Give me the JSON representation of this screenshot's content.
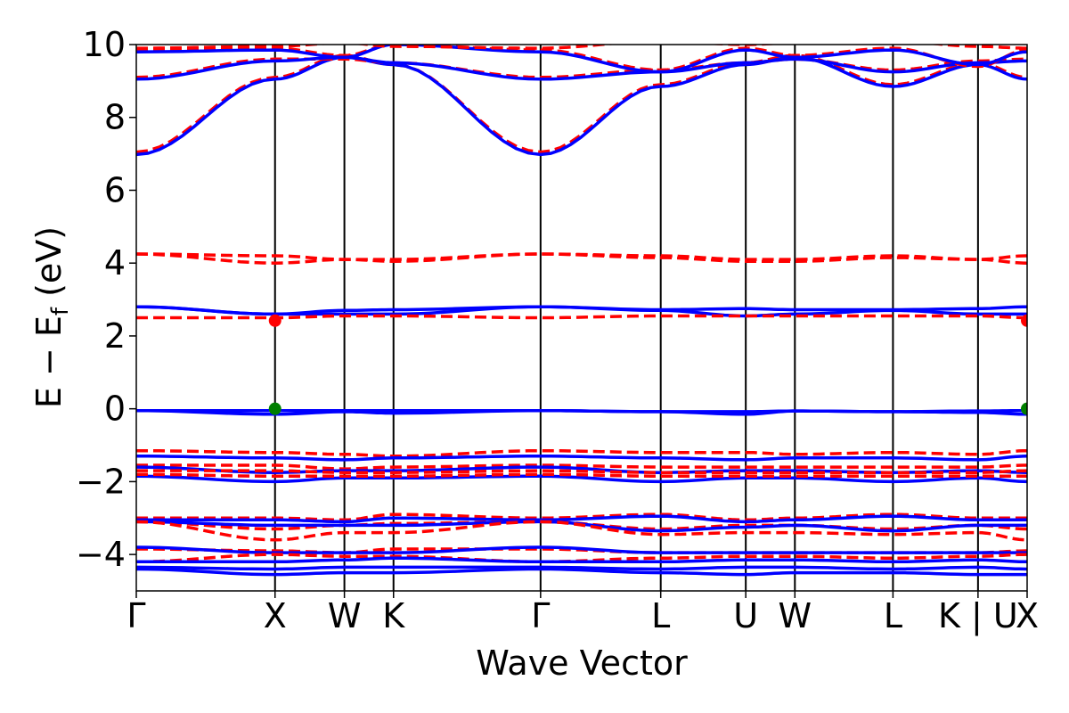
{
  "chart_data": {
    "type": "line",
    "xlabel": "Wave Vector",
    "ylabel": "E − E",
    "ylabel_sub": "f",
    "ylabel_unit": " (eV)",
    "ylim": [
      -5,
      10
    ],
    "yticks": [
      10,
      8,
      6,
      4,
      2,
      0,
      -2,
      -4
    ],
    "ytick_labels": [
      "10",
      "8",
      "6",
      "4",
      "2",
      "0",
      "−2",
      "−4"
    ],
    "kpath": [
      {
        "label": "Γ",
        "x": 0
      },
      {
        "label": "X",
        "x": 1.0
      },
      {
        "label": "W",
        "x": 1.5
      },
      {
        "label": "K",
        "x": 1.854
      },
      {
        "label": "Γ",
        "x": 2.914
      },
      {
        "label": "L",
        "x": 3.78
      },
      {
        "label": "U",
        "x": 4.393
      },
      {
        "label": "W",
        "x": 4.747
      },
      {
        "label": "L",
        "x": 5.454
      },
      {
        "label": "K | U",
        "x": 6.067
      },
      {
        "label": "X",
        "x": 6.421
      }
    ],
    "xlim": [
      0,
      6.421
    ],
    "grid": false,
    "legend": "none",
    "colors": {
      "solid": "#0000ff",
      "dashed": "#ff0000",
      "marker_red": "#ff0000",
      "marker_green": "#007f00"
    },
    "series": [
      {
        "style": "solid",
        "y": [
          -0.05,
          -0.05,
          -0.05,
          -0.05,
          -0.05,
          -0.08,
          -0.08,
          -0.06,
          -0.08,
          -0.06,
          -0.05
        ]
      },
      {
        "style": "solid",
        "y": [
          -0.05,
          -0.15,
          -0.08,
          -0.12,
          -0.05,
          -0.08,
          -0.15,
          -0.06,
          -0.08,
          -0.1,
          -0.15
        ]
      },
      {
        "style": "solid",
        "y": [
          2.8,
          2.6,
          2.7,
          2.72,
          2.8,
          2.72,
          2.75,
          2.72,
          2.72,
          2.75,
          2.8
        ]
      },
      {
        "style": "solid",
        "y": [
          2.8,
          2.6,
          2.6,
          2.6,
          2.8,
          2.7,
          2.55,
          2.6,
          2.7,
          2.6,
          2.6
        ]
      },
      {
        "style": "dashed",
        "y": [
          2.5,
          2.5,
          2.55,
          2.55,
          2.5,
          2.55,
          2.55,
          2.55,
          2.55,
          2.55,
          2.5
        ]
      },
      {
        "style": "dashed",
        "y": [
          4.25,
          4.2,
          4.1,
          4.1,
          4.25,
          4.2,
          4.1,
          4.1,
          4.2,
          4.1,
          4.2
        ]
      },
      {
        "style": "dashed",
        "y": [
          4.25,
          4.0,
          4.1,
          4.05,
          4.25,
          4.15,
          4.05,
          4.05,
          4.15,
          4.1,
          4.0
        ]
      },
      {
        "style": "dashed",
        "y": [
          7.05,
          9.1,
          9.7,
          9.45,
          7.05,
          8.9,
          9.5,
          9.7,
          8.9,
          9.5,
          9.1
        ]
      },
      {
        "style": "solid",
        "y": [
          6.98,
          9.05,
          9.65,
          9.45,
          6.98,
          8.85,
          9.45,
          9.65,
          8.85,
          9.45,
          9.05
        ]
      },
      {
        "style": "dashed",
        "y": [
          9.1,
          9.6,
          9.6,
          9.5,
          9.1,
          9.3,
          9.5,
          9.6,
          9.3,
          9.55,
          9.6
        ]
      },
      {
        "style": "solid",
        "y": [
          9.05,
          9.55,
          9.65,
          9.5,
          9.05,
          9.25,
          9.5,
          9.6,
          9.25,
          9.5,
          9.55
        ]
      },
      {
        "style": "dashed",
        "y": [
          9.85,
          9.9,
          9.7,
          10.0,
          9.85,
          9.3,
          9.9,
          9.7,
          9.9,
          9.4,
          9.85
        ]
      },
      {
        "style": "solid",
        "y": [
          9.8,
          9.85,
          9.65,
          10.0,
          9.8,
          9.25,
          9.85,
          9.65,
          9.85,
          9.45,
          9.8
        ]
      },
      {
        "style": "dashed",
        "y": [
          9.9,
          9.95,
          10.05,
          9.95,
          9.9,
          10.1,
          10.0,
          10.05,
          10.1,
          9.95,
          9.9
        ]
      },
      {
        "style": "dashed",
        "y": [
          -1.15,
          -1.2,
          -1.25,
          -1.3,
          -1.15,
          -1.2,
          -1.2,
          -1.25,
          -1.2,
          -1.25,
          -1.15
        ]
      },
      {
        "style": "solid",
        "y": [
          -1.3,
          -1.35,
          -1.4,
          -1.35,
          -1.3,
          -1.35,
          -1.4,
          -1.35,
          -1.35,
          -1.4,
          -1.3
        ]
      },
      {
        "style": "dashed",
        "y": [
          -1.55,
          -1.55,
          -1.65,
          -1.6,
          -1.55,
          -1.6,
          -1.6,
          -1.6,
          -1.6,
          -1.6,
          -1.55
        ]
      },
      {
        "style": "solid",
        "y": [
          -1.6,
          -1.75,
          -1.7,
          -1.7,
          -1.6,
          -1.75,
          -1.7,
          -1.7,
          -1.75,
          -1.7,
          -1.75
        ]
      },
      {
        "style": "dashed",
        "y": [
          -1.7,
          -1.7,
          -1.75,
          -1.75,
          -1.7,
          -1.75,
          -1.75,
          -1.75,
          -1.75,
          -1.75,
          -1.7
        ]
      },
      {
        "style": "solid",
        "y": [
          -1.85,
          -2.0,
          -1.9,
          -1.9,
          -1.85,
          -2.0,
          -1.9,
          -1.9,
          -2.0,
          -1.9,
          -2.0
        ]
      },
      {
        "style": "dashed",
        "y": [
          -1.8,
          -1.85,
          -1.85,
          -1.85,
          -1.8,
          -1.85,
          -1.85,
          -1.85,
          -1.85,
          -1.85,
          -1.85
        ]
      },
      {
        "style": "dashed",
        "y": [
          -3.0,
          -3.0,
          -3.05,
          -2.9,
          -3.0,
          -2.9,
          -3.05,
          -3.0,
          -2.9,
          -3.0,
          -3.0
        ]
      },
      {
        "style": "solid",
        "y": [
          -3.05,
          -3.05,
          -3.1,
          -3.0,
          -3.05,
          -2.95,
          -3.1,
          -3.05,
          -2.95,
          -3.05,
          -3.05
        ]
      },
      {
        "style": "dashed",
        "y": [
          -3.1,
          -3.3,
          -3.2,
          -3.15,
          -3.1,
          -3.3,
          -3.2,
          -3.2,
          -3.3,
          -3.2,
          -3.3
        ]
      },
      {
        "style": "solid",
        "y": [
          -3.1,
          -3.2,
          -3.2,
          -3.2,
          -3.1,
          -3.35,
          -3.25,
          -3.2,
          -3.35,
          -3.2,
          -3.2
        ]
      },
      {
        "style": "dashed",
        "y": [
          -3.1,
          -3.6,
          -3.4,
          -3.4,
          -3.1,
          -3.45,
          -3.4,
          -3.4,
          -3.45,
          -3.4,
          -3.6
        ]
      },
      {
        "style": "dashed",
        "y": [
          -3.85,
          -3.9,
          -3.95,
          -3.85,
          -3.85,
          -3.95,
          -3.95,
          -3.95,
          -3.95,
          -3.95,
          -3.9
        ]
      },
      {
        "style": "solid",
        "y": [
          -3.8,
          -3.95,
          -3.95,
          -3.95,
          -3.8,
          -3.95,
          -3.95,
          -3.95,
          -3.95,
          -3.95,
          -3.95
        ]
      },
      {
        "style": "dashed",
        "y": [
          -4.2,
          -4.0,
          -4.05,
          -4.05,
          -4.2,
          -4.1,
          -4.05,
          -4.05,
          -4.1,
          -4.05,
          -4.0
        ]
      },
      {
        "style": "solid",
        "y": [
          -4.2,
          -4.2,
          -4.15,
          -4.1,
          -4.2,
          -4.2,
          -4.15,
          -4.15,
          -4.2,
          -4.15,
          -4.2
        ]
      },
      {
        "style": "solid",
        "y": [
          -4.35,
          -4.4,
          -4.35,
          -4.35,
          -4.35,
          -4.4,
          -4.35,
          -4.35,
          -4.4,
          -4.35,
          -4.4
        ]
      },
      {
        "style": "solid",
        "y": [
          -4.4,
          -4.55,
          -4.5,
          -4.5,
          -4.4,
          -4.5,
          -4.55,
          -4.5,
          -4.5,
          -4.55,
          -4.55
        ]
      }
    ],
    "markers": [
      {
        "x": 1.0,
        "y": 2.42,
        "color": "red"
      },
      {
        "x": 6.421,
        "y": 2.42,
        "color": "red"
      },
      {
        "x": 1.0,
        "y": 0.0,
        "color": "green"
      },
      {
        "x": 6.421,
        "y": 0.0,
        "color": "green"
      }
    ]
  }
}
